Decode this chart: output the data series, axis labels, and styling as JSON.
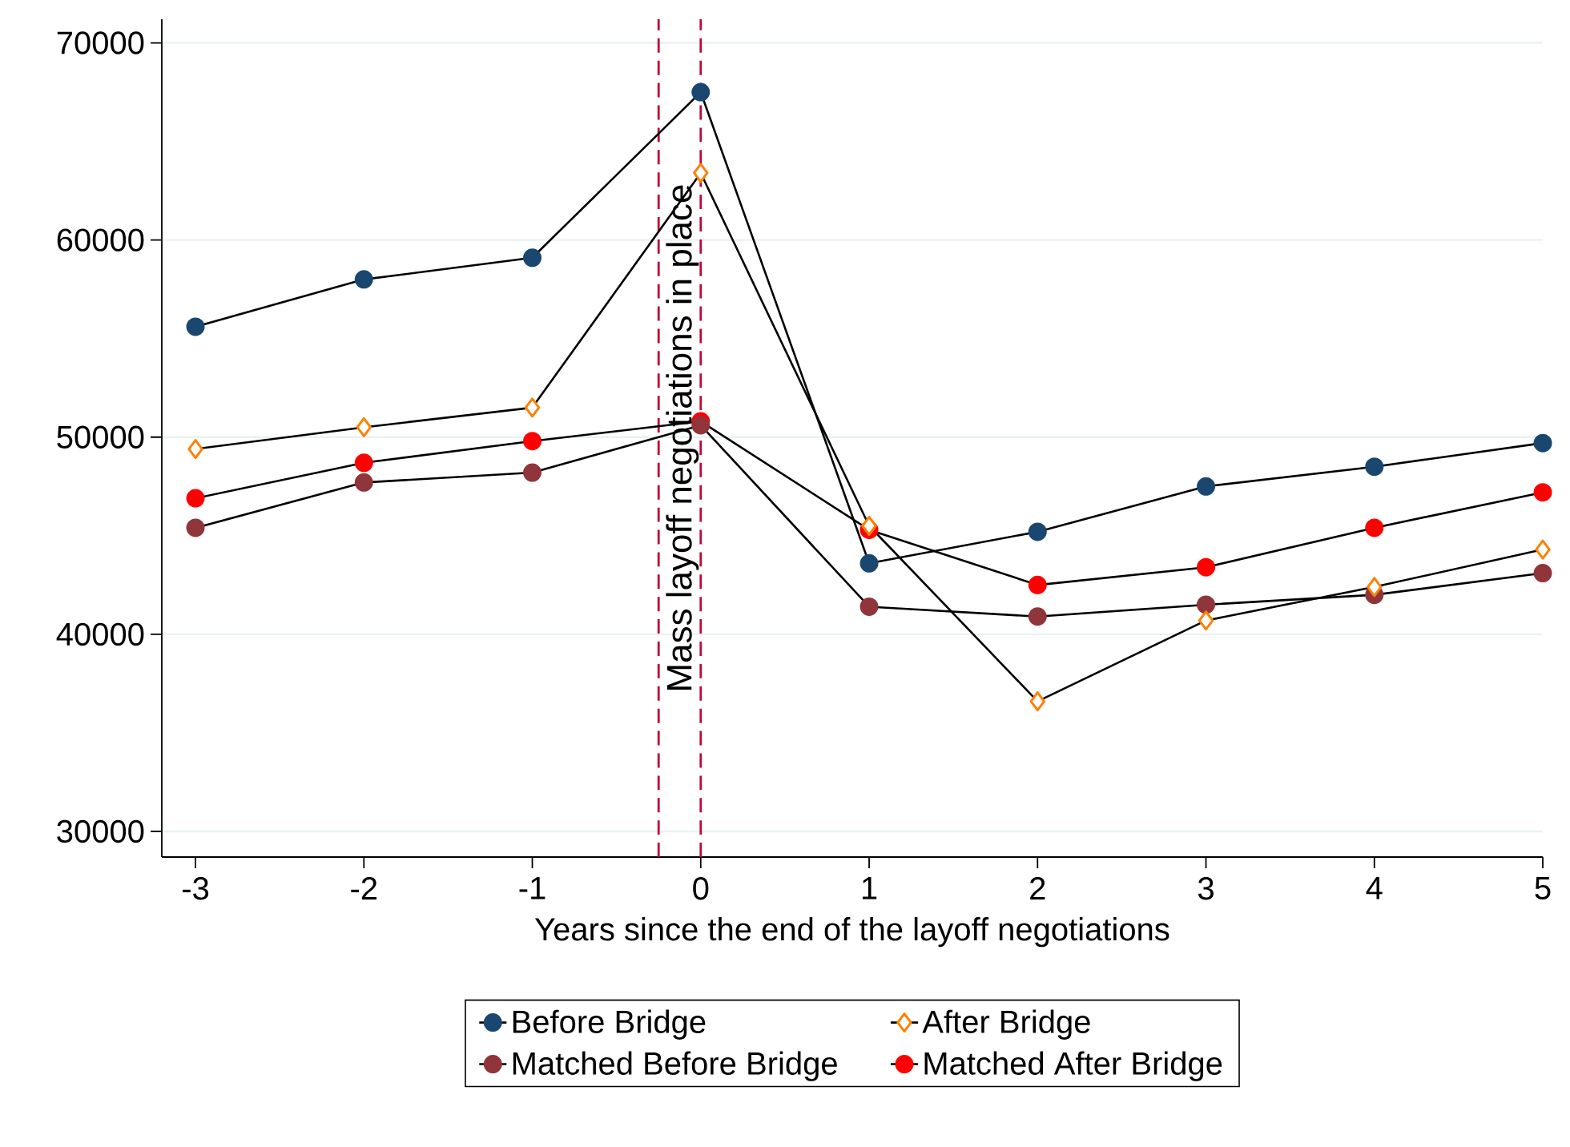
{
  "chart_data": {
    "type": "line",
    "xlabel": "Years since the end of the layoff negotiations",
    "x": [
      -3,
      -2,
      -1,
      0,
      1,
      2,
      3,
      4,
      5
    ],
    "series": [
      {
        "name": "Before Bridge",
        "color": "#1a476f",
        "marker": "circle",
        "values": [
          55600,
          58000,
          59100,
          67500,
          43600,
          45200,
          47500,
          48500,
          49700
        ]
      },
      {
        "name": "After Bridge",
        "color": "#ff8000",
        "marker": "diamond",
        "values": [
          49400,
          50500,
          51500,
          63400,
          45500,
          36600,
          40700,
          42400,
          44300
        ]
      },
      {
        "name": "Matched Before Bridge",
        "color": "#90353b",
        "marker": "circle",
        "values": [
          45400,
          47700,
          48200,
          50600,
          41400,
          40900,
          41500,
          42000,
          43100
        ]
      },
      {
        "name": "Matched After Bridge",
        "color": "#ff0000",
        "marker": "circle",
        "values": [
          46900,
          48700,
          49800,
          50800,
          45300,
          42500,
          43400,
          45400,
          47200
        ]
      }
    ],
    "xlim": [
      -3.2,
      5
    ],
    "ylim": [
      28700,
      71200
    ],
    "xticks": [
      -3,
      -2,
      -1,
      0,
      1,
      2,
      3,
      4,
      5
    ],
    "yticks": [
      30000,
      40000,
      50000,
      60000,
      70000
    ],
    "ref_lines": [
      {
        "axis": "x",
        "value": -0.25,
        "label": null,
        "color": "#c10534",
        "line_style": "dashed"
      },
      {
        "axis": "x",
        "value": 0,
        "label": "Mass layoff negotiations in place",
        "color": "#c10534",
        "line_style": "dashed"
      }
    ],
    "grid": "y",
    "legend": "bottom",
    "line_style": "solid"
  }
}
